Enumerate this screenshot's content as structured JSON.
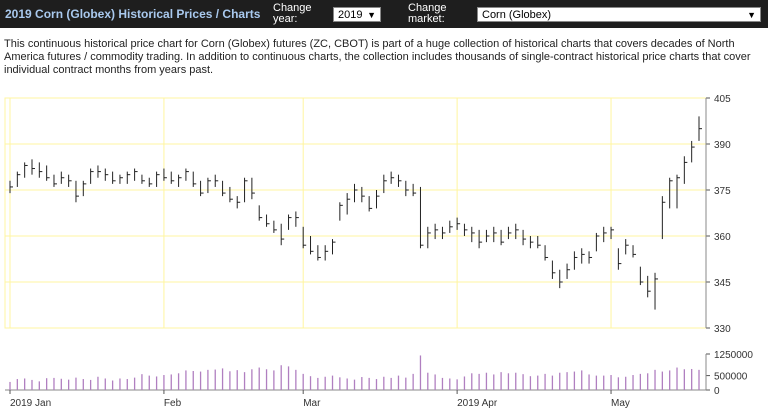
{
  "header": {
    "title": "2019 Corn (Globex) Historical Prices / Charts",
    "year_label": "Change year:",
    "year_value": "2019",
    "market_label": "Change market:",
    "market_value": "Corn (Globex)"
  },
  "description": "This continuous historical price chart for Corn (Globex) futures (ZC, CBOT) is part of a huge collection of historical charts that covers decades of North America futures / commodity trading. In addition to continuous charts, the collection includes thousands of single-contract historical price charts that cover individual contract months from years past.",
  "colors": {
    "header_bg": "#1e1e1e",
    "title": "#a9c9ee",
    "grid": "#fff5a0",
    "bar": "#222222",
    "volume": "#b07fc0"
  },
  "chart_data": [
    {
      "type": "ohlc",
      "title": "",
      "ylim": [
        330,
        405
      ],
      "yticks": [
        330,
        345,
        360,
        375,
        390,
        405
      ],
      "grid": true,
      "x_months": [
        {
          "label": "2019 Jan",
          "index": 0
        },
        {
          "label": "Feb",
          "index": 21
        },
        {
          "label": "Mar",
          "index": 40
        },
        {
          "label": "2019 Apr",
          "index": 61
        },
        {
          "label": "May",
          "index": 82
        }
      ],
      "series": [
        {
          "high": 378,
          "low": 374,
          "close": 376
        },
        {
          "high": 381,
          "low": 376,
          "close": 380
        },
        {
          "high": 384,
          "low": 379,
          "close": 383
        },
        {
          "high": 385,
          "low": 380,
          "close": 382
        },
        {
          "high": 384,
          "low": 379,
          "close": 381
        },
        {
          "high": 383,
          "low": 378,
          "close": 379
        },
        {
          "high": 380,
          "low": 376,
          "close": 377
        },
        {
          "high": 381,
          "low": 377,
          "close": 379
        },
        {
          "high": 380,
          "low": 376,
          "close": 378
        },
        {
          "high": 378,
          "low": 371,
          "close": 373
        },
        {
          "high": 378,
          "low": 373,
          "close": 377
        },
        {
          "high": 382,
          "low": 377,
          "close": 381
        },
        {
          "high": 383,
          "low": 379,
          "close": 381
        },
        {
          "high": 382,
          "low": 378,
          "close": 380
        },
        {
          "high": 381,
          "low": 377,
          "close": 378
        },
        {
          "high": 380,
          "low": 377,
          "close": 379
        },
        {
          "high": 381,
          "low": 377,
          "close": 380
        },
        {
          "high": 382,
          "low": 378,
          "close": 381
        },
        {
          "high": 380,
          "low": 377,
          "close": 378
        },
        {
          "high": 379,
          "low": 376,
          "close": 377
        },
        {
          "high": 381,
          "low": 376,
          "close": 380
        },
        {
          "high": 382,
          "low": 378,
          "close": 379
        },
        {
          "high": 381,
          "low": 377,
          "close": 378
        },
        {
          "high": 380,
          "low": 376,
          "close": 379
        },
        {
          "high": 382,
          "low": 378,
          "close": 381
        },
        {
          "high": 381,
          "low": 376,
          "close": 377
        },
        {
          "high": 378,
          "low": 373,
          "close": 374
        },
        {
          "high": 379,
          "low": 374,
          "close": 378
        },
        {
          "high": 380,
          "low": 376,
          "close": 378
        },
        {
          "high": 378,
          "low": 373,
          "close": 374
        },
        {
          "high": 376,
          "low": 371,
          "close": 372
        },
        {
          "high": 373,
          "low": 369,
          "close": 371
        },
        {
          "high": 379,
          "low": 371,
          "close": 378
        },
        {
          "high": 379,
          "low": 372,
          "close": 374
        },
        {
          "high": 370,
          "low": 365,
          "close": 366
        },
        {
          "high": 367,
          "low": 363,
          "close": 364
        },
        {
          "high": 365,
          "low": 361,
          "close": 362
        },
        {
          "high": 364,
          "low": 357,
          "close": 359
        },
        {
          "high": 367,
          "low": 362,
          "close": 366
        },
        {
          "high": 368,
          "low": 363,
          "close": 366
        },
        {
          "high": 363,
          "low": 356,
          "close": 357
        },
        {
          "high": 360,
          "low": 354,
          "close": 355
        },
        {
          "high": 357,
          "low": 352,
          "close": 353
        },
        {
          "high": 357,
          "low": 352,
          "close": 355
        },
        {
          "high": 359,
          "low": 354,
          "close": 358
        },
        {
          "high": 371,
          "low": 365,
          "close": 370
        },
        {
          "high": 374,
          "low": 367,
          "close": 372
        },
        {
          "high": 377,
          "low": 371,
          "close": 375
        },
        {
          "high": 376,
          "low": 371,
          "close": 373
        },
        {
          "high": 373,
          "low": 368,
          "close": 369
        },
        {
          "high": 375,
          "low": 369,
          "close": 373
        },
        {
          "high": 380,
          "low": 374,
          "close": 378
        },
        {
          "high": 381,
          "low": 377,
          "close": 379
        },
        {
          "high": 380,
          "low": 376,
          "close": 378
        },
        {
          "high": 378,
          "low": 373,
          "close": 375
        },
        {
          "high": 377,
          "low": 373,
          "close": 374
        },
        {
          "high": 376,
          "low": 356,
          "close": 357
        },
        {
          "high": 363,
          "low": 356,
          "close": 361
        },
        {
          "high": 364,
          "low": 359,
          "close": 362
        },
        {
          "high": 363,
          "low": 359,
          "close": 361
        },
        {
          "high": 365,
          "low": 361,
          "close": 363
        },
        {
          "high": 366,
          "low": 362,
          "close": 364
        },
        {
          "high": 364,
          "low": 360,
          "close": 362
        },
        {
          "high": 363,
          "low": 358,
          "close": 361
        },
        {
          "high": 362,
          "low": 356,
          "close": 358
        },
        {
          "high": 362,
          "low": 358,
          "close": 360
        },
        {
          "high": 363,
          "low": 358,
          "close": 361
        },
        {
          "high": 362,
          "low": 357,
          "close": 358
        },
        {
          "high": 363,
          "low": 359,
          "close": 361
        },
        {
          "high": 364,
          "low": 359,
          "close": 362
        },
        {
          "high": 362,
          "low": 357,
          "close": 359
        },
        {
          "high": 360,
          "low": 356,
          "close": 358
        },
        {
          "high": 360,
          "low": 356,
          "close": 357
        },
        {
          "high": 357,
          "low": 352,
          "close": 353
        },
        {
          "high": 352,
          "low": 346,
          "close": 348
        },
        {
          "high": 349,
          "low": 343,
          "close": 345
        },
        {
          "high": 351,
          "low": 346,
          "close": 349
        },
        {
          "high": 355,
          "low": 349,
          "close": 353
        },
        {
          "high": 356,
          "low": 351,
          "close": 354
        },
        {
          "high": 355,
          "low": 351,
          "close": 353
        },
        {
          "high": 361,
          "low": 355,
          "close": 360
        },
        {
          "high": 363,
          "low": 358,
          "close": 361
        },
        {
          "high": 363,
          "low": 359,
          "close": 362
        },
        {
          "high": 356,
          "low": 349,
          "close": 351
        },
        {
          "high": 359,
          "low": 354,
          "close": 357
        },
        {
          "high": 357,
          "low": 353,
          "close": 354
        },
        {
          "high": 350,
          "low": 344,
          "close": 345
        },
        {
          "high": 347,
          "low": 340,
          "close": 342
        },
        {
          "high": 348,
          "low": 336,
          "close": 346
        },
        {
          "high": 373,
          "low": 359,
          "close": 371
        },
        {
          "high": 379,
          "low": 369,
          "close": 378
        },
        {
          "high": 380,
          "low": 369,
          "close": 379
        },
        {
          "high": 386,
          "low": 377,
          "close": 384
        },
        {
          "high": 391,
          "low": 384,
          "close": 389
        },
        {
          "high": 399,
          "low": 391,
          "close": 395
        }
      ]
    },
    {
      "type": "bar",
      "title": "",
      "ylim": [
        0,
        1250000
      ],
      "yticks": [
        0,
        500000,
        1250000
      ],
      "values": [
        280000,
        380000,
        400000,
        350000,
        300000,
        410000,
        420000,
        390000,
        360000,
        430000,
        380000,
        350000,
        460000,
        400000,
        330000,
        400000,
        380000,
        430000,
        550000,
        500000,
        470000,
        520000,
        540000,
        580000,
        680000,
        660000,
        640000,
        700000,
        710000,
        750000,
        650000,
        690000,
        620000,
        720000,
        780000,
        720000,
        680000,
        860000,
        820000,
        700000,
        560000,
        480000,
        420000,
        460000,
        500000,
        440000,
        400000,
        360000,
        450000,
        420000,
        380000,
        460000,
        420000,
        500000,
        430000,
        560000,
        1200000,
        600000,
        540000,
        420000,
        400000,
        370000,
        470000,
        580000,
        560000,
        600000,
        540000,
        620000,
        580000,
        600000,
        550000,
        480000,
        500000,
        560000,
        500000,
        600000,
        620000,
        640000,
        680000,
        540000,
        500000,
        500000,
        520000,
        440000,
        460000,
        520000,
        560000,
        580000,
        700000,
        640000,
        680000,
        780000,
        720000,
        730000,
        700000
      ]
    }
  ]
}
